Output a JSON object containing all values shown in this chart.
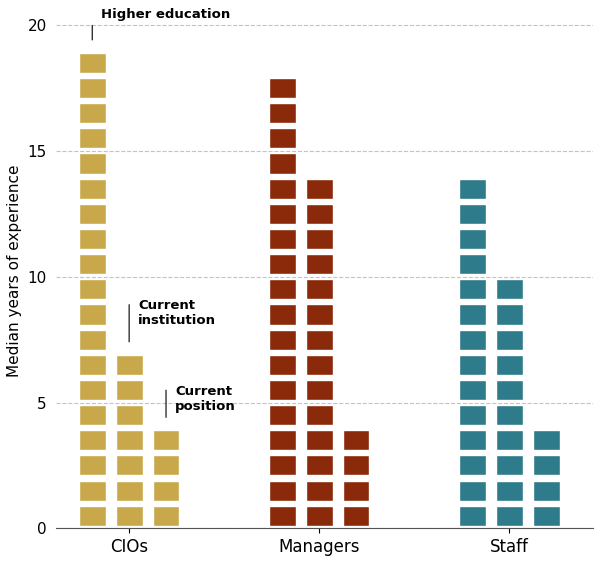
{
  "groups": [
    "CIOs",
    "Managers",
    "Staff"
  ],
  "categories": [
    "Higher education",
    "Current institution",
    "Current position"
  ],
  "values": {
    "CIOs": [
      19,
      7,
      4
    ],
    "Managers": [
      18,
      14,
      4
    ],
    "Staff": [
      14,
      10,
      4
    ]
  },
  "colors": {
    "CIOs": "#C8A84B",
    "Managers": "#8B2A0A",
    "Staff": "#2E7B8C"
  },
  "ylabel": "Median years of experience",
  "ylim": [
    0,
    20
  ],
  "yticks": [
    0,
    5,
    10,
    15,
    20
  ],
  "bar_width": 0.28,
  "inter_bar_gap": 0.05,
  "group_positions": [
    1.0,
    2.7,
    4.4
  ],
  "background_color": "#FFFFFF",
  "grid_color": "#AAAAAA",
  "label_fontsize": 11,
  "tick_fontsize": 11,
  "annot_fontsize": 9.5
}
